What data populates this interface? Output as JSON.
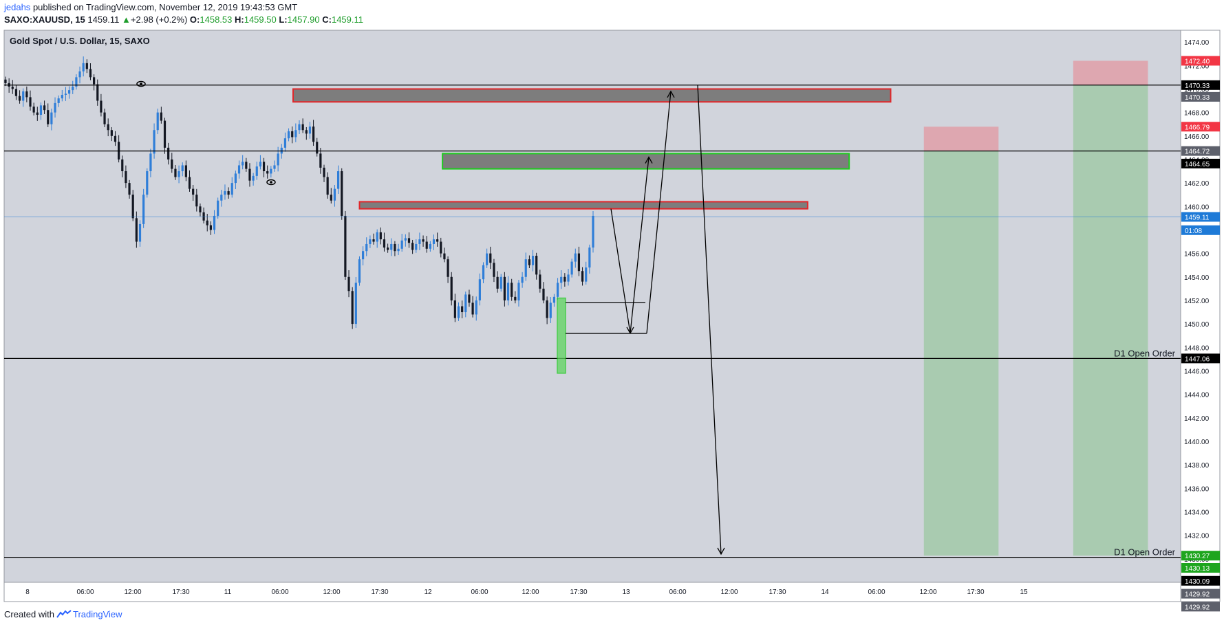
{
  "header": {
    "author": "jedahs",
    "published_text": "published on TradingView.com, November 12, 2019 19:43:53 GMT",
    "symbol": "SAXO:XAUUSD, 15",
    "last": "1459.11",
    "change_arrow": "▲",
    "change": "+2.98 (+0.2%)",
    "o_label": "O:",
    "o": "1458.53",
    "h_label": "H:",
    "h": "1459.50",
    "l_label": "L:",
    "l": "1457.90",
    "c_label": "C:",
    "c": "1459.11"
  },
  "legend_title": "Gold Spot / U.S. Dollar, 15, SAXO",
  "footer": {
    "created_with": "Created with",
    "brand": "TradingView"
  },
  "colors": {
    "pane_bg": "#d1d4dc",
    "up_candle": "#2f7ed8",
    "down_candle": "#131722",
    "supply_zone_border": "#e0272a",
    "demand_zone_border": "#1ecb1e",
    "zone_fill": "#7d7d7d",
    "target_green": "#a9cbb0",
    "stop_red": "#dea7b0",
    "last_price_blue": "#1e7ad7"
  },
  "chart_data": {
    "type": "candlestick",
    "symbol": "SAXO:XAUUSD",
    "timeframe": "15",
    "y_range": [
      1428.0,
      1475.0
    ],
    "y_ticks": [
      "1474.00",
      "1472.00",
      "1470.00",
      "1468.00",
      "1466.00",
      "1464.00",
      "1462.00",
      "1460.00",
      "1458.00",
      "1456.00",
      "1454.00",
      "1452.00",
      "1450.00",
      "1448.00",
      "1446.00",
      "1444.00",
      "1442.00",
      "1440.00",
      "1438.00",
      "1436.00",
      "1434.00",
      "1432.00",
      "1430.00"
    ],
    "x_ticks": [
      "8",
      "06:00",
      "12:00",
      "17:30",
      "11",
      "06:00",
      "12:00",
      "17:30",
      "12",
      "06:00",
      "12:00",
      "17:30",
      "13",
      "06:00",
      "12:00",
      "17:30",
      "14",
      "06:00",
      "12:00",
      "17:30",
      "15"
    ],
    "price_path": [
      1470.5,
      1470.2,
      1470.0,
      1469.4,
      1469.0,
      1469.8,
      1469.3,
      1468.5,
      1468.0,
      1467.8,
      1468.6,
      1468.2,
      1467.0,
      1468.0,
      1468.8,
      1469.2,
      1469.5,
      1469.6,
      1469.9,
      1470.2,
      1471.0,
      1471.5,
      1472.2,
      1471.7,
      1471.0,
      1470.4,
      1469.0,
      1468.0,
      1467.0,
      1466.5,
      1466.0,
      1465.5,
      1464.0,
      1463.0,
      1462.0,
      1461.0,
      1459.0,
      1457.0,
      1458.5,
      1461.0,
      1463.0,
      1464.5,
      1466.5,
      1468.0,
      1467.3,
      1465.0,
      1464.0,
      1463.2,
      1462.5,
      1463.0,
      1463.5,
      1462.5,
      1461.5,
      1461.0,
      1460.0,
      1459.5,
      1458.8,
      1458.4,
      1458.0,
      1459.2,
      1460.5,
      1461.0,
      1461.3,
      1461.0,
      1462.0,
      1462.8,
      1463.5,
      1463.8,
      1463.2,
      1462.2,
      1462.6,
      1463.4,
      1463.8,
      1463.0,
      1462.8,
      1463.2,
      1463.5,
      1464.5,
      1465.0,
      1465.8,
      1466.4,
      1465.9,
      1466.5,
      1467.0,
      1466.5,
      1466.2,
      1466.8,
      1465.5,
      1464.5,
      1463.3,
      1462.5,
      1461.0,
      1460.5,
      1461.5,
      1463.0,
      1459.2,
      1454.0,
      1452.8,
      1450.0,
      1453.5,
      1455.5,
      1456.2,
      1456.8,
      1457.2,
      1457.0,
      1457.8,
      1457.2,
      1456.5,
      1456.3,
      1456.8,
      1456.2,
      1456.4,
      1457.1,
      1457.3,
      1456.9,
      1456.3,
      1456.8,
      1457.2,
      1457.0,
      1456.4,
      1456.8,
      1457.2,
      1457.0,
      1456.0,
      1455.5,
      1454.0,
      1452.0,
      1450.5,
      1451.5,
      1451.0,
      1452.5,
      1451.8,
      1450.8,
      1452.0,
      1453.8,
      1455.0,
      1456.0,
      1455.2,
      1454.0,
      1453.0,
      1454.0,
      1452.0,
      1453.5,
      1452.3,
      1452.0,
      1453.5,
      1454.0,
      1455.5,
      1455.0,
      1455.8,
      1454.2,
      1453.0,
      1452.0,
      1450.5,
      1451.8,
      1452.3,
      1453.5,
      1454.0,
      1453.6,
      1454.2,
      1455.3,
      1456.0,
      1454.5,
      1453.6,
      1454.8,
      1456.5,
      1459.2
    ],
    "horizontal_lines": [
      {
        "price": 1470.33,
        "label": ""
      },
      {
        "price": 1464.72,
        "label": ""
      },
      {
        "price": 1447.06,
        "label": "D1 Open Order"
      },
      {
        "price": 1430.13,
        "label": "D1 Open Order"
      }
    ],
    "zones": [
      {
        "kind": "supply",
        "top": 1470.0,
        "bottom": 1468.9,
        "from_date": "10 Nov 08:00",
        "to_date": "13 Nov 08:00"
      },
      {
        "kind": "demand",
        "top": 1464.5,
        "bottom": 1463.2,
        "from_date": "11 Nov 02:00",
        "to_date": "13 Nov 03:00"
      },
      {
        "kind": "supply",
        "top": 1460.4,
        "bottom": 1459.8,
        "from_date": "10 Nov 16:00",
        "to_date": "12 Nov 22:00"
      }
    ],
    "price_labels": [
      {
        "text": "1472.40",
        "price": 1472.4,
        "style": "red"
      },
      {
        "text": "1470.33",
        "price": 1470.33,
        "style": "black"
      },
      {
        "text": "1470.33",
        "price": 1469.33,
        "style": "gray"
      },
      {
        "text": "1466.79",
        "price": 1466.79,
        "style": "red"
      },
      {
        "text": "1464.72",
        "price": 1464.72,
        "style": "gray"
      },
      {
        "text": "1464.65",
        "price": 1463.65,
        "style": "black"
      },
      {
        "text": "1459.11",
        "price": 1459.11,
        "style": "blue"
      },
      {
        "text": "01:08",
        "price": 1457.98,
        "style": "blue"
      },
      {
        "text": "1447.06",
        "price": 1447.06,
        "style": "black"
      },
      {
        "text": "1430.27",
        "price": 1430.27,
        "style": "green"
      },
      {
        "text": "1430.13",
        "price": 1429.23,
        "style": "green"
      },
      {
        "text": "1430.09",
        "price": 1428.13,
        "style": "black"
      },
      {
        "text": "1429.92",
        "price": 1427.03,
        "style": "gray"
      },
      {
        "text": "1429.92",
        "price": 1425.93,
        "style": "gray"
      }
    ],
    "position_boxes": [
      {
        "from_date": "13 Nov 12:00",
        "to_date": "13 Nov 21:00",
        "stop_top": 1466.79,
        "entry": 1464.72,
        "target": 1430.27
      },
      {
        "from_date": "14 Nov 06:00",
        "to_date": "14 Nov 15:00",
        "stop_top": 1472.4,
        "entry": 1470.33,
        "target": 1430.27
      }
    ],
    "last_price": 1459.11,
    "grid": false
  }
}
